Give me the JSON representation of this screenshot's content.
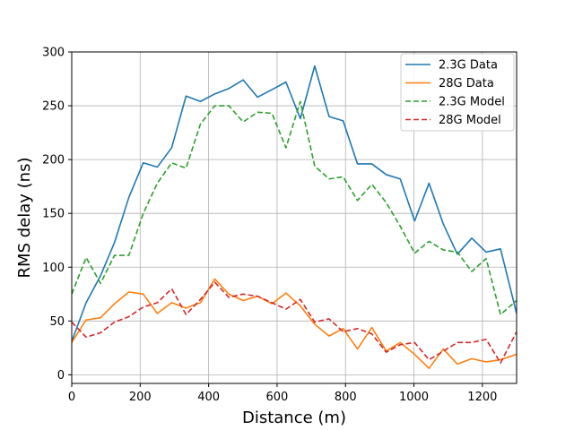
{
  "chart_data": {
    "type": "line",
    "title": "",
    "xlabel": "Distance (m)",
    "ylabel": "RMS delay (ns)",
    "xlim": [
      0,
      1300
    ],
    "ylim": [
      -8,
      300
    ],
    "xticks": [
      0,
      200,
      400,
      600,
      800,
      1000,
      1200
    ],
    "yticks": [
      0,
      50,
      100,
      150,
      200,
      250,
      300
    ],
    "grid": true,
    "legend_position": "top-right",
    "series": [
      {
        "name": "2.3G Data",
        "color": "#1f77b4",
        "dash": "solid",
        "x": [
          0,
          42,
          84,
          125,
          167,
          209,
          250,
          292,
          334,
          376,
          418,
          459,
          501,
          543,
          585,
          626,
          668,
          710,
          752,
          793,
          835,
          877,
          919,
          960,
          1002,
          1044,
          1086,
          1127,
          1169,
          1211,
          1253,
          1300
        ],
        "y": [
          31,
          67,
          92,
          123,
          165,
          197,
          193,
          211,
          259,
          254,
          261,
          266,
          274,
          258,
          265,
          272,
          238,
          287,
          240,
          236,
          196,
          196,
          186,
          182,
          143,
          178,
          140,
          112,
          127,
          114,
          117,
          57
        ]
      },
      {
        "name": "28G Data",
        "color": "#ff7f0e",
        "dash": "solid",
        "x": [
          0,
          42,
          84,
          125,
          167,
          209,
          250,
          292,
          334,
          376,
          418,
          459,
          501,
          543,
          585,
          626,
          668,
          710,
          752,
          793,
          835,
          877,
          919,
          960,
          1002,
          1044,
          1086,
          1127,
          1169,
          1211,
          1253,
          1300
        ],
        "y": [
          30,
          51,
          53,
          66,
          77,
          75,
          57,
          67,
          62,
          67,
          89,
          75,
          69,
          73,
          66,
          76,
          64,
          47,
          36,
          43,
          24,
          44,
          22,
          30,
          19,
          6,
          24,
          10,
          15,
          12,
          14,
          19
        ]
      },
      {
        "name": "2.3G Model",
        "color": "#2ca02c",
        "dash": "dashed",
        "x": [
          0,
          42,
          84,
          125,
          167,
          209,
          250,
          292,
          334,
          376,
          418,
          459,
          501,
          543,
          585,
          626,
          668,
          710,
          752,
          793,
          835,
          877,
          919,
          960,
          1002,
          1044,
          1086,
          1127,
          1169,
          1211,
          1253,
          1300
        ],
        "y": [
          75,
          109,
          85,
          111,
          111,
          150,
          178,
          197,
          192,
          233,
          250,
          250,
          235,
          244,
          243,
          211,
          254,
          194,
          182,
          184,
          162,
          177,
          160,
          138,
          113,
          124,
          116,
          114,
          96,
          108,
          56,
          69
        ]
      },
      {
        "name": "28G Model",
        "color": "#d62728",
        "dash": "dashed",
        "x": [
          0,
          42,
          84,
          125,
          167,
          209,
          250,
          292,
          334,
          376,
          418,
          459,
          501,
          543,
          585,
          626,
          668,
          710,
          752,
          793,
          835,
          877,
          919,
          960,
          1002,
          1044,
          1086,
          1127,
          1169,
          1211,
          1253,
          1300
        ],
        "y": [
          49,
          35,
          39,
          49,
          54,
          63,
          67,
          80,
          56,
          70,
          86,
          72,
          75,
          73,
          67,
          61,
          70,
          49,
          52,
          40,
          43,
          38,
          21,
          28,
          30,
          14,
          22,
          30,
          30,
          33,
          11,
          40
        ]
      }
    ]
  }
}
